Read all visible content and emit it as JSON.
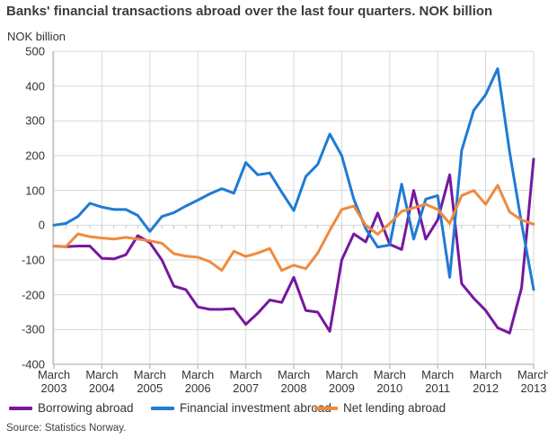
{
  "title": "Banks' financial transactions abroad over the last four quarters. NOK billion",
  "y_axis_title": "NOK billion",
  "source": "Source: Statistics Norway.",
  "colors": {
    "borrowing": "#76189e",
    "financial_investment": "#1f7bd4",
    "net_lending": "#f08a3c",
    "grid": "#d8d8d8",
    "axis": "#c2c2c2",
    "text": "#333333",
    "title_text": "#3c3c3c"
  },
  "chart_data": {
    "type": "line",
    "title": "Banks' financial transactions abroad over the last four quarters. NOK billion",
    "ylabel": "NOK billion",
    "ylim": [
      -400,
      500
    ],
    "y_ticks": [
      500,
      400,
      300,
      200,
      100,
      0,
      -100,
      -200,
      -300,
      -400
    ],
    "grid": true,
    "legend_position": "bottom",
    "x_tick_month": "March",
    "x_tick_years": [
      "2003",
      "2004",
      "2005",
      "2006",
      "2007",
      "2008",
      "2009",
      "2010",
      "2011",
      "2012",
      "2013"
    ],
    "frequency": "quarterly",
    "n_points": 41,
    "x_start": "March 2003",
    "x_end": "March 2013",
    "series": [
      {
        "name": "Borrowing abroad",
        "color_key": "borrowing",
        "values": [
          -60,
          -62,
          -60,
          -60,
          -95,
          -97,
          -85,
          -30,
          -50,
          -100,
          -175,
          -185,
          -235,
          -242,
          -242,
          -240,
          -285,
          -253,
          -215,
          -222,
          -150,
          -245,
          -250,
          -305,
          -100,
          -25,
          -48,
          35,
          -55,
          -70,
          100,
          -40,
          15,
          145,
          -168,
          -210,
          -245,
          -295,
          -310,
          -180,
          190
        ]
      },
      {
        "name": "Financial investment abroad",
        "color_key": "financial_investment",
        "values": [
          0,
          5,
          25,
          63,
          52,
          45,
          45,
          28,
          -18,
          25,
          36,
          55,
          72,
          90,
          105,
          92,
          180,
          145,
          150,
          95,
          42,
          140,
          175,
          262,
          200,
          75,
          -10,
          -63,
          -57,
          118,
          -40,
          75,
          85,
          -150,
          215,
          330,
          375,
          450,
          210,
          5,
          -185
        ]
      },
      {
        "name": "Net lending abroad",
        "color_key": "net_lending",
        "values": [
          -60,
          -62,
          -25,
          -33,
          -37,
          -40,
          -35,
          -40,
          -45,
          -52,
          -82,
          -89,
          -92,
          -105,
          -130,
          -75,
          -90,
          -80,
          -67,
          -130,
          -115,
          -125,
          -80,
          -15,
          45,
          55,
          0,
          -26,
          5,
          40,
          50,
          60,
          45,
          5,
          85,
          100,
          60,
          115,
          38,
          15,
          3
        ]
      }
    ]
  }
}
